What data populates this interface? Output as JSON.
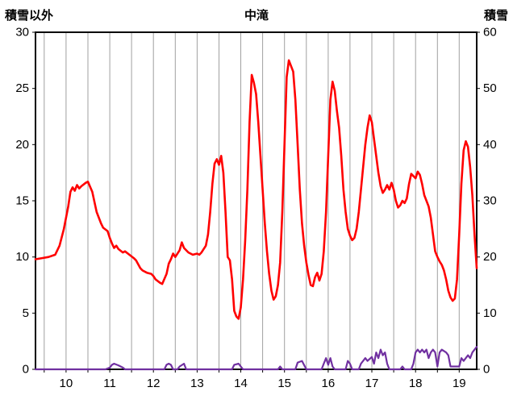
{
  "header": {
    "left_axis_title": "積雪以外",
    "title": "中滝",
    "right_axis_title": "積雪"
  },
  "chart_data": {
    "type": "line",
    "title": "中滝",
    "left_axis": {
      "label": "積雪以外",
      "min": 0,
      "max": 30,
      "ticks": [
        30,
        25,
        20,
        15,
        10,
        5,
        0
      ]
    },
    "right_axis": {
      "label": "積雪",
      "min": 0,
      "max": 60,
      "ticks": [
        60,
        50,
        40,
        30,
        20,
        10,
        0
      ]
    },
    "x_axis": {
      "min": 9.3,
      "max": 19.4,
      "tick_values": [
        10,
        11,
        12,
        13,
        14,
        15,
        16,
        17,
        18,
        19
      ],
      "tick_labels": [
        "10",
        "11",
        "12",
        "13",
        "14",
        "15",
        "16",
        "17",
        "18",
        "19"
      ],
      "gridline_start": 9.5,
      "gridline_end": 19.0,
      "gridline_step": 0.5
    },
    "grid": {
      "vertical": true,
      "horizontal": false,
      "color": "#a0a0a0"
    },
    "frame_color": "#000000",
    "series": [
      {
        "name": "積雪以外",
        "axis": "left",
        "color": "#ff0000",
        "width": 2.6,
        "x": [
          9.3,
          9.45,
          9.6,
          9.75,
          9.85,
          9.95,
          10.05,
          10.1,
          10.15,
          10.2,
          10.25,
          10.3,
          10.35,
          10.45,
          10.5,
          10.6,
          10.7,
          10.8,
          10.85,
          10.95,
          11.0,
          11.05,
          11.1,
          11.15,
          11.2,
          11.3,
          11.35,
          11.45,
          11.55,
          11.6,
          11.7,
          11.75,
          11.85,
          11.95,
          12.0,
          12.05,
          12.15,
          12.2,
          12.3,
          12.35,
          12.4,
          12.45,
          12.5,
          12.6,
          12.65,
          12.7,
          12.8,
          12.9,
          13.0,
          13.05,
          13.1,
          13.2,
          13.25,
          13.3,
          13.35,
          13.4,
          13.45,
          13.5,
          13.55,
          13.6,
          13.65,
          13.7,
          13.75,
          13.8,
          13.85,
          13.9,
          13.95,
          14.0,
          14.05,
          14.1,
          14.15,
          14.2,
          14.25,
          14.3,
          14.35,
          14.4,
          14.45,
          14.5,
          14.55,
          14.6,
          14.65,
          14.7,
          14.75,
          14.8,
          14.85,
          14.9,
          14.95,
          15.0,
          15.05,
          15.1,
          15.15,
          15.2,
          15.25,
          15.3,
          15.35,
          15.4,
          15.45,
          15.5,
          15.55,
          15.6,
          15.65,
          15.7,
          15.75,
          15.8,
          15.85,
          15.9,
          15.95,
          16.0,
          16.05,
          16.1,
          16.15,
          16.2,
          16.25,
          16.3,
          16.35,
          16.4,
          16.45,
          16.5,
          16.55,
          16.6,
          16.65,
          16.7,
          16.75,
          16.8,
          16.85,
          16.9,
          16.95,
          17.0,
          17.05,
          17.1,
          17.15,
          17.2,
          17.25,
          17.3,
          17.35,
          17.4,
          17.45,
          17.5,
          17.55,
          17.6,
          17.65,
          17.7,
          17.75,
          17.8,
          17.85,
          17.9,
          17.95,
          18.0,
          18.05,
          18.1,
          18.15,
          18.2,
          18.25,
          18.3,
          18.35,
          18.4,
          18.45,
          18.5,
          18.55,
          18.6,
          18.65,
          18.7,
          18.75,
          18.8,
          18.85,
          18.9,
          18.95,
          19.0,
          19.05,
          19.1,
          19.15,
          19.2,
          19.25,
          19.3,
          19.35,
          19.4
        ],
        "values": [
          9.8,
          9.9,
          10.0,
          10.2,
          11.0,
          12.5,
          14.5,
          15.8,
          16.2,
          15.9,
          16.4,
          16.1,
          16.3,
          16.6,
          16.7,
          15.8,
          14.0,
          13.0,
          12.6,
          12.3,
          11.7,
          11.2,
          10.8,
          11.0,
          10.7,
          10.4,
          10.5,
          10.2,
          9.9,
          9.7,
          9.0,
          8.8,
          8.6,
          8.5,
          8.3,
          8.0,
          7.7,
          7.6,
          8.5,
          9.4,
          9.8,
          10.3,
          10.0,
          10.6,
          11.3,
          10.8,
          10.4,
          10.2,
          10.3,
          10.2,
          10.4,
          11.0,
          12.0,
          14.0,
          16.5,
          18.3,
          18.7,
          18.2,
          19.0,
          17.5,
          14.0,
          10.0,
          9.7,
          8.0,
          5.2,
          4.7,
          4.5,
          5.5,
          8.0,
          11.5,
          16.0,
          22.0,
          26.2,
          25.5,
          24.5,
          22.0,
          19.0,
          16.0,
          13.0,
          10.5,
          8.5,
          7.0,
          6.2,
          6.5,
          7.5,
          9.5,
          14.0,
          20.0,
          26.0,
          27.5,
          27.0,
          26.5,
          24.0,
          20.0,
          16.0,
          13.0,
          11.0,
          9.5,
          8.4,
          7.5,
          7.4,
          8.2,
          8.6,
          7.9,
          8.5,
          10.5,
          14.0,
          19.0,
          24.0,
          25.6,
          24.8,
          23.0,
          21.5,
          19.0,
          16.0,
          14.0,
          12.5,
          11.9,
          11.5,
          11.7,
          12.5,
          14.0,
          16.0,
          18.0,
          20.0,
          21.5,
          22.6,
          22.0,
          20.5,
          19.0,
          17.5,
          16.3,
          15.7,
          16.0,
          16.4,
          16.0,
          16.6,
          16.0,
          15.0,
          14.4,
          14.6,
          15.0,
          14.8,
          15.2,
          16.5,
          17.4,
          17.2,
          17.0,
          17.6,
          17.3,
          16.5,
          15.5,
          15.0,
          14.5,
          13.5,
          12.0,
          10.5,
          10.0,
          9.6,
          9.3,
          8.8,
          8.0,
          7.0,
          6.4,
          6.1,
          6.3,
          8.0,
          12.0,
          16.5,
          19.5,
          20.3,
          19.8,
          18.0,
          15.5,
          12.0,
          9.0
        ]
      },
      {
        "name": "積雪",
        "axis": "right",
        "color": "#7030a0",
        "width": 2.2,
        "x": [
          9.3,
          10.9,
          11.0,
          11.05,
          11.1,
          11.2,
          11.3,
          11.35,
          12.25,
          12.3,
          12.35,
          12.4,
          12.45,
          12.55,
          12.6,
          12.7,
          12.75,
          13.8,
          13.85,
          13.95,
          14.05,
          14.85,
          14.9,
          14.95,
          15.25,
          15.3,
          15.4,
          15.5,
          15.85,
          15.9,
          15.95,
          16.0,
          16.05,
          16.1,
          16.15,
          16.4,
          16.45,
          16.5,
          16.55,
          16.7,
          16.75,
          16.85,
          16.9,
          17.0,
          17.05,
          17.1,
          17.15,
          17.2,
          17.25,
          17.3,
          17.35,
          17.4,
          17.65,
          17.7,
          17.75,
          17.9,
          17.95,
          18.0,
          18.05,
          18.1,
          18.15,
          18.2,
          18.25,
          18.3,
          18.35,
          18.4,
          18.45,
          18.5,
          18.55,
          18.6,
          18.7,
          18.75,
          18.8,
          18.9,
          18.95,
          19.0,
          19.05,
          19.1,
          19.15,
          19.2,
          19.25,
          19.3,
          19.35,
          19.4
        ],
        "values": [
          0,
          0,
          0.3,
          0.8,
          1.0,
          0.7,
          0.3,
          0,
          0,
          0.8,
          1.0,
          0.8,
          0,
          0,
          0.5,
          1.0,
          0,
          0,
          0.8,
          1.0,
          0,
          0,
          0.5,
          0,
          0,
          1.2,
          1.5,
          0,
          0,
          1.0,
          2.0,
          0.8,
          2.0,
          0.5,
          0,
          0,
          1.5,
          1.0,
          0,
          0,
          1.0,
          2.0,
          1.5,
          2.2,
          1.0,
          3.0,
          2.0,
          3.5,
          2.5,
          3.0,
          1.0,
          0,
          0,
          0.5,
          0,
          0,
          1.0,
          3.0,
          3.5,
          3.0,
          3.5,
          3.0,
          3.5,
          2.0,
          3.0,
          3.5,
          3.0,
          0.5,
          3.0,
          3.5,
          3.0,
          2.5,
          0.5,
          0.5,
          0.5,
          0.5,
          2.0,
          1.5,
          2.0,
          2.5,
          2.0,
          3.0,
          3.5,
          4.0
        ]
      }
    ]
  }
}
